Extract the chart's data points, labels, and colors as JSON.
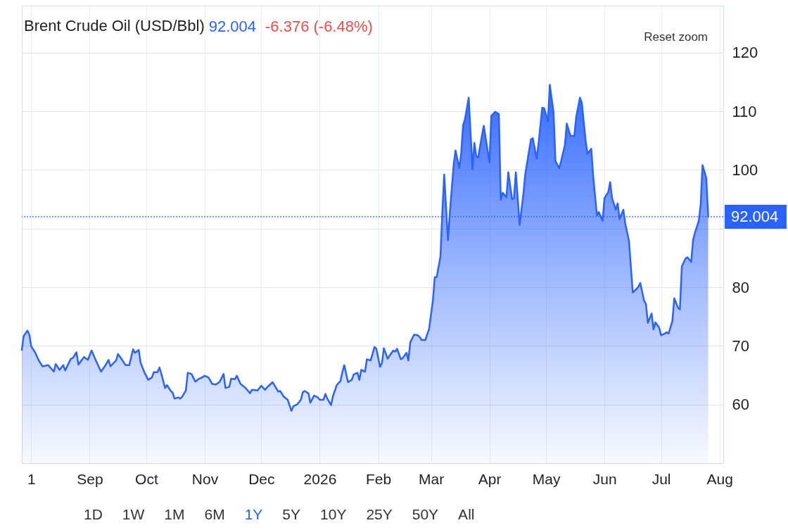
{
  "chart_data": {
    "type": "area",
    "title": "Brent Crude Oil (USD/Bbl)",
    "annotations": [
      "92.004",
      "-6.376 (-6.48%)",
      "Reset zoom",
      "1D",
      "1W",
      "1M",
      "6M",
      "1Y",
      "5Y",
      "10Y",
      "25Y",
      "50Y",
      "All"
    ],
    "x": [
      "2025-07-27",
      "2025-07-28",
      "2025-07-30",
      "2025-07-31",
      "2025-08-01",
      "2025-08-03",
      "2025-08-05",
      "2025-08-07",
      "2025-08-10",
      "2025-08-13",
      "2025-08-14",
      "2025-08-16",
      "2025-08-18",
      "2025-08-19",
      "2025-08-22",
      "2025-08-23",
      "2025-08-25",
      "2025-08-26",
      "2025-08-29",
      "2025-08-31",
      "2025-09-02",
      "2025-09-04",
      "2025-09-07",
      "2025-09-09",
      "2025-09-11",
      "2025-09-12",
      "2025-09-15",
      "2025-09-16",
      "2025-09-18",
      "2025-09-20",
      "2025-09-22",
      "2025-09-24",
      "2025-09-25",
      "2025-09-27",
      "2025-09-28",
      "2025-09-30",
      "2025-10-02",
      "2025-10-04",
      "2025-10-05",
      "2025-10-07",
      "2025-10-08",
      "2025-10-09",
      "2025-10-11",
      "2025-10-12",
      "2025-10-14",
      "2025-10-15",
      "2025-10-16",
      "2025-10-18",
      "2025-10-19",
      "2025-10-20",
      "2025-10-22",
      "2025-10-23",
      "2025-10-25",
      "2025-10-27",
      "2025-10-29",
      "2025-10-30",
      "2025-11-01",
      "2025-11-03",
      "2025-11-05",
      "2025-11-07",
      "2025-11-09",
      "2025-11-11",
      "2025-11-12",
      "2025-11-14",
      "2025-11-15",
      "2025-11-17",
      "2025-11-18",
      "2025-11-20",
      "2025-11-22",
      "2025-11-23",
      "2025-11-25",
      "2025-11-26",
      "2025-11-29",
      "2025-12-01",
      "2025-12-03",
      "2025-12-04",
      "2025-12-07",
      "2025-12-10",
      "2025-12-11",
      "2025-12-13",
      "2025-12-15",
      "2025-12-17",
      "2025-12-18",
      "2025-12-20",
      "2025-12-22",
      "2025-12-23",
      "2025-12-24",
      "2025-12-26",
      "2025-12-27",
      "2025-12-29",
      "2025-12-31",
      "2026-01-01",
      "2026-01-03",
      "2026-01-04",
      "2026-01-05",
      "2026-01-07",
      "2026-01-08",
      "2026-01-10",
      "2026-01-12",
      "2026-01-13",
      "2026-01-14",
      "2026-01-16",
      "2026-01-18",
      "2026-01-19",
      "2026-01-21",
      "2026-01-22",
      "2026-01-23",
      "2026-01-25",
      "2026-01-26",
      "2026-01-28",
      "2026-01-30",
      "2026-01-31",
      "2026-02-02",
      "2026-02-03",
      "2026-02-04",
      "2026-02-06",
      "2026-02-07",
      "2026-02-09",
      "2026-02-10",
      "2026-02-11",
      "2026-02-13",
      "2026-02-14",
      "2026-02-16",
      "2026-02-17",
      "2026-02-18",
      "2026-02-20",
      "2026-02-22",
      "2026-02-23",
      "2026-02-24",
      "2026-02-26",
      "2026-02-28",
      "2026-03-02",
      "2026-03-03",
      "2026-03-04",
      "2026-03-06",
      "2026-03-07",
      "2026-03-08",
      "2026-03-10",
      "2026-03-11",
      "2026-03-13",
      "2026-03-14",
      "2026-03-16",
      "2026-03-17",
      "2026-03-18",
      "2026-03-19",
      "2026-03-21",
      "2026-03-23",
      "2026-03-24",
      "2026-03-25",
      "2026-03-26",
      "2026-03-28",
      "2026-03-29",
      "2026-04-01",
      "2026-04-02",
      "2026-04-04",
      "2026-04-06",
      "2026-04-07",
      "2026-04-08",
      "2026-04-10",
      "2026-04-11",
      "2026-04-13",
      "2026-04-14",
      "2026-04-15",
      "2026-04-17",
      "2026-04-19",
      "2026-04-20",
      "2026-04-23",
      "2026-04-24",
      "2026-04-26",
      "2026-04-27",
      "2026-04-29",
      "2026-04-30",
      "2026-05-02",
      "2026-05-03",
      "2026-05-05",
      "2026-05-06",
      "2026-05-08",
      "2026-05-09",
      "2026-05-11",
      "2026-05-12",
      "2026-05-14",
      "2026-05-16",
      "2026-05-17",
      "2026-05-19",
      "2026-05-20",
      "2026-05-22",
      "2026-05-23",
      "2026-05-25",
      "2026-05-26",
      "2026-05-28",
      "2026-05-29",
      "2026-05-31",
      "2026-06-01",
      "2026-06-03",
      "2026-06-04",
      "2026-06-05",
      "2026-06-07",
      "2026-06-08",
      "2026-06-09",
      "2026-06-11",
      "2026-06-12",
      "2026-06-14",
      "2026-06-15",
      "2026-06-16",
      "2026-06-18",
      "2026-06-19",
      "2026-06-20",
      "2026-06-22",
      "2026-06-23",
      "2026-06-24",
      "2026-06-26",
      "2026-06-27",
      "2026-06-28",
      "2026-06-30",
      "2026-07-01",
      "2026-07-03",
      "2026-07-04",
      "2026-07-05",
      "2026-07-07",
      "2026-07-08",
      "2026-07-10",
      "2026-07-11",
      "2026-07-12",
      "2026-07-14",
      "2026-07-15",
      "2026-07-17",
      "2026-07-18",
      "2026-07-19",
      "2026-07-21",
      "2026-07-22",
      "2026-07-23",
      "2026-07-25",
      "2026-07-26"
    ],
    "series": [
      {
        "color": "#2962ff",
        "values": [
          69.3,
          71.7,
          72.6,
          71.9,
          69.9,
          68.9,
          67.5,
          66.5,
          66.7,
          65.6,
          66.9,
          65.9,
          66.7,
          65.8,
          67.8,
          67.9,
          68.9,
          66.8,
          68.1,
          67.6,
          69.2,
          67.7,
          65.6,
          66.5,
          67.6,
          66.5,
          67.5,
          68.6,
          67.7,
          66.7,
          66.7,
          69.4,
          68.8,
          69.3,
          67.1,
          65.5,
          64.2,
          64.6,
          65.5,
          65.5,
          66.3,
          65.2,
          62.8,
          63.3,
          62.3,
          62.0,
          61.0,
          61.2,
          61.0,
          61.3,
          62.4,
          65.4,
          65.2,
          63.9,
          64.4,
          64.5,
          64.9,
          64.6,
          63.5,
          63.4,
          63.9,
          65.2,
          62.8,
          63.0,
          64.4,
          64.3,
          64.9,
          63.5,
          63.0,
          62.7,
          61.9,
          62.5,
          62.4,
          63.2,
          62.5,
          62.9,
          63.8,
          62.2,
          62.3,
          61.3,
          60.8,
          58.9,
          59.7,
          60.0,
          60.8,
          62.1,
          62.3,
          61.9,
          60.3,
          61.5,
          61.2,
          60.8,
          60.8,
          61.8,
          61.0,
          59.9,
          61.4,
          63.3,
          64.0,
          65.5,
          66.7,
          63.8,
          64.2,
          65.1,
          65.4,
          64.2,
          65.9,
          65.6,
          67.7,
          67.5,
          69.8,
          69.5,
          66.4,
          67.1,
          69.6,
          67.8,
          68.3,
          69.2,
          69.0,
          69.5,
          67.7,
          67.9,
          68.8,
          67.5,
          70.6,
          71.9,
          71.8,
          71.5,
          71.0,
          71.0,
          72.9,
          77.7,
          81.7,
          81.7,
          85.2,
          92.7,
          99.2,
          88.0,
          92.7,
          100.8,
          103.3,
          100.3,
          102.7,
          107.6,
          108.6,
          112.3,
          100.1,
          104.6,
          102.3,
          102.1,
          105.8,
          107.5,
          101.3,
          109.2,
          109.9,
          109.5,
          94.9,
          96.1,
          95.3,
          99.6,
          95.0,
          95.2,
          99.6,
          90.6,
          95.9,
          99.3,
          105.2,
          105.4,
          101.9,
          104.4,
          110.6,
          110.5,
          108.3,
          114.5,
          109.8,
          101.5,
          100.3,
          101.5,
          104.2,
          107.9,
          105.8,
          105.8,
          109.0,
          112.3,
          111.4,
          105.0,
          102.7,
          103.6,
          99.0,
          92.2,
          92.8,
          91.3,
          95.2,
          96.2,
          97.9,
          95.2,
          93.2,
          94.3,
          91.6,
          93.2,
          90.9,
          87.9,
          83.5,
          79.1,
          79.7,
          80.1,
          80.7,
          77.7,
          77.1,
          73.9,
          75.5,
          72.8,
          74.0,
          73.1,
          71.8,
          72.1,
          72.3,
          72.1,
          74.2,
          78.1,
          76.5,
          76.2,
          83.5,
          84.9,
          85.1,
          84.3,
          88.1,
          89.3,
          91.3,
          94.0,
          100.8,
          98.6,
          92.004
        ]
      }
    ],
    "xlim": [
      "2025-07-27",
      "2026-08-03"
    ],
    "xticks": [
      {
        "value": "2025-08-01",
        "label": "1"
      },
      {
        "value": "2025-09-01",
        "label": "Sep"
      },
      {
        "value": "2025-10-01",
        "label": "Oct"
      },
      {
        "value": "2025-11-01",
        "label": "Nov"
      },
      {
        "value": "2025-12-01",
        "label": "Dec"
      },
      {
        "value": "2026-01-01",
        "label": "2026"
      },
      {
        "value": "2026-02-01",
        "label": "Feb"
      },
      {
        "value": "2026-03-01",
        "label": "Mar"
      },
      {
        "value": "2026-04-01",
        "label": "Apr"
      },
      {
        "value": "2026-05-01",
        "label": "May"
      },
      {
        "value": "2026-06-01",
        "label": "Jun"
      },
      {
        "value": "2026-07-01",
        "label": "Jul"
      },
      {
        "value": "2026-08-01",
        "label": "Aug"
      }
    ],
    "ylim": [
      50,
      128
    ],
    "yticks": [
      60,
      70,
      80,
      {
        "value": 90,
        "label": null
      },
      100,
      110,
      120
    ],
    "ref_lines": [
      {
        "axis": "y",
        "value": 92.004,
        "label": "92.004",
        "color": "#2962ff",
        "line_style": "dotted"
      }
    ],
    "grid": true
  }
}
